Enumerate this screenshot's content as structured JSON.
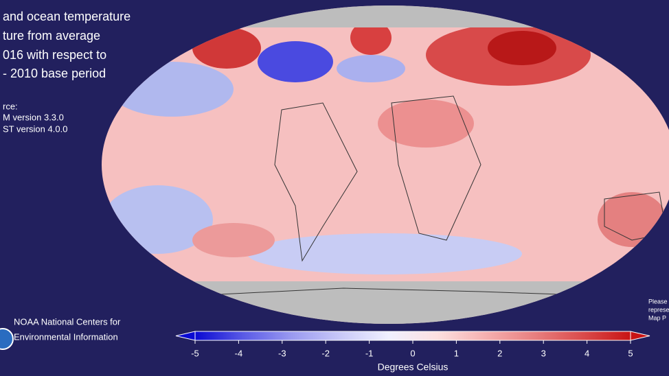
{
  "title_lines": [
    "and ocean temperature",
    "ture from average",
    "016 with respect to",
    " - 2010 base period"
  ],
  "source_lines": [
    "rce:",
    "M version 3.3.0",
    "ST version 4.0.0"
  ],
  "logo_lines": [
    "NOAA National Centers for",
    "Environmental Information"
  ],
  "note_lines": [
    "Please",
    "represe",
    "Map P"
  ],
  "colorbar": {
    "label": "Degrees Celsius",
    "lim": [
      -5,
      5
    ],
    "ticks": [
      -5,
      -4,
      -3,
      -2,
      -1,
      0,
      1,
      2,
      3,
      4,
      5
    ],
    "colors": [
      "#0a0ad2",
      "#5a5ae6",
      "#9a9af0",
      "#c8c8f8",
      "#f0f0ff",
      "#fde0e0",
      "#f5b0b0",
      "#e88080",
      "#da4c4c",
      "#c81414"
    ]
  }
}
